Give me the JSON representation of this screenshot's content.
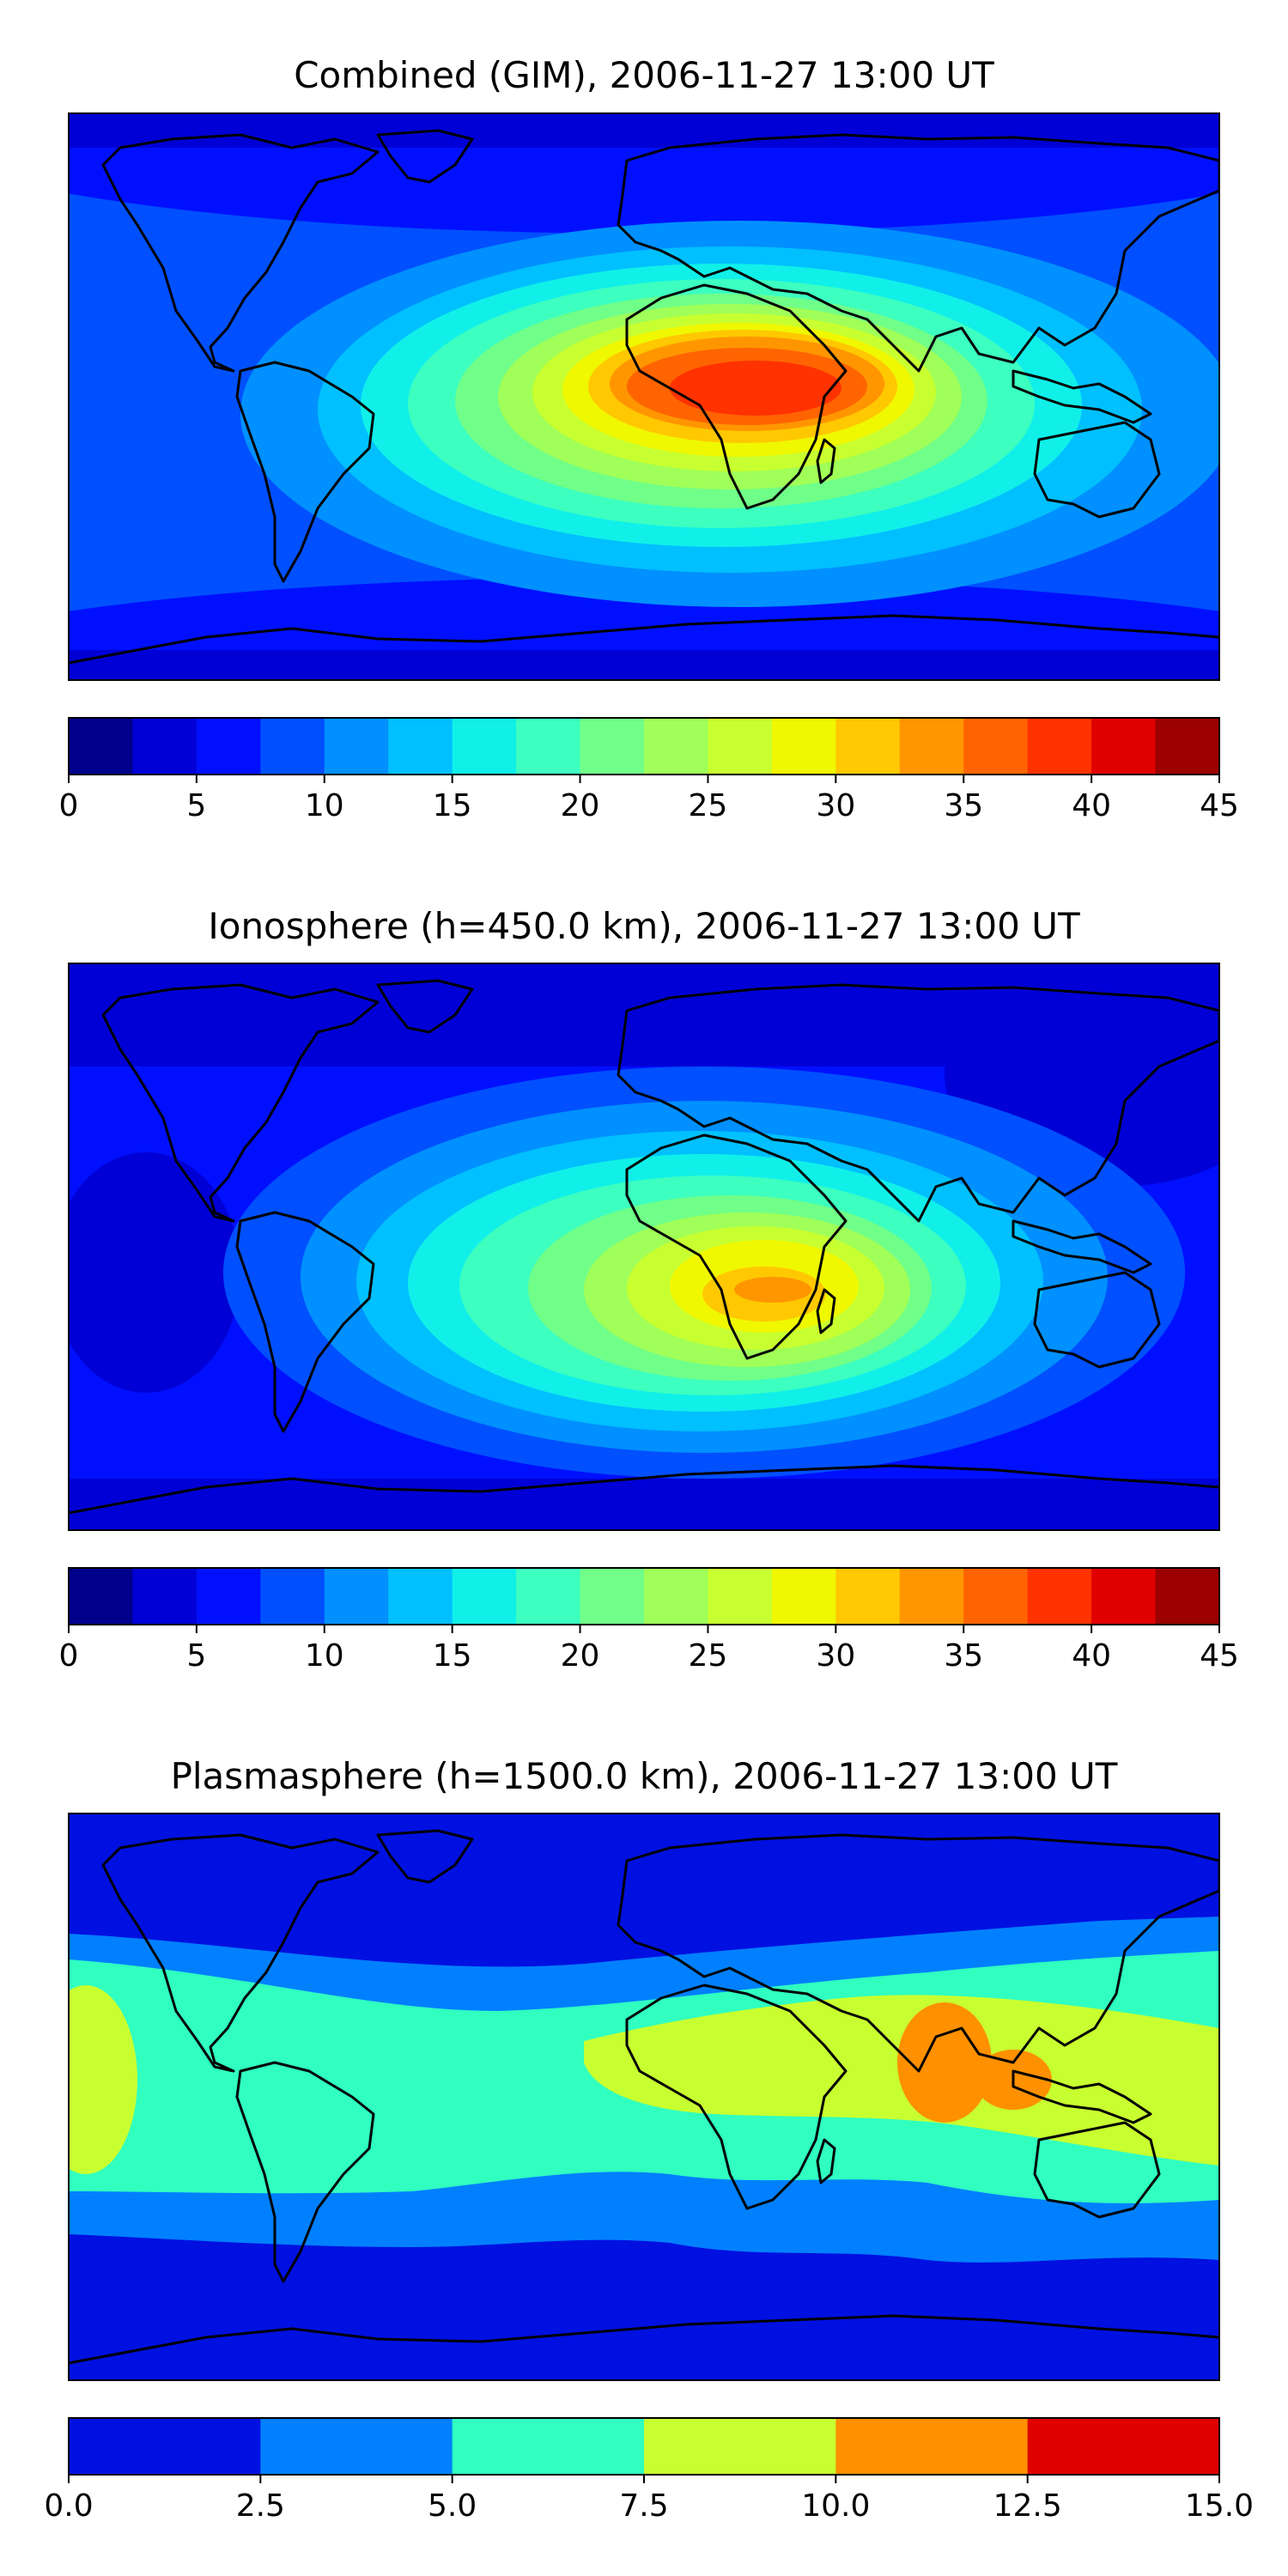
{
  "panels": [
    {
      "id": "combined",
      "title": "Combined (GIM), 2006-11-27 13:00 UT",
      "colorbar": {
        "ticks": [
          "0",
          "5",
          "10",
          "15",
          "20",
          "25",
          "30",
          "35",
          "40",
          "45"
        ],
        "bins": [
          0,
          2.5,
          5,
          7.5,
          10,
          12.5,
          15,
          17.5,
          20,
          22.5,
          25,
          27.5,
          30,
          32.5,
          35,
          37.5,
          40,
          42.5,
          45
        ],
        "colors": [
          "#00008c",
          "#0000d6",
          "#0010ff",
          "#0050ff",
          "#0090ff",
          "#00c0ff",
          "#10f0e8",
          "#3cffc0",
          "#70ff88",
          "#a0ff58",
          "#c8ff30",
          "#f0f800",
          "#ffc800",
          "#ff9600",
          "#ff6400",
          "#ff3200",
          "#e00000",
          "#9c0000"
        ]
      }
    },
    {
      "id": "ionosphere",
      "title": "Ionosphere  (h=450.0 km), 2006-11-27 13:00 UT",
      "colorbar": {
        "ticks": [
          "0",
          "5",
          "10",
          "15",
          "20",
          "25",
          "30",
          "35",
          "40",
          "45"
        ],
        "bins": [
          0,
          2.5,
          5,
          7.5,
          10,
          12.5,
          15,
          17.5,
          20,
          22.5,
          25,
          27.5,
          30,
          32.5,
          35,
          37.5,
          40,
          42.5,
          45
        ],
        "colors": [
          "#00008c",
          "#0000d6",
          "#0010ff",
          "#0050ff",
          "#0090ff",
          "#00c0ff",
          "#10f0e8",
          "#3cffc0",
          "#70ff88",
          "#a0ff58",
          "#c8ff30",
          "#f0f800",
          "#ffc800",
          "#ff9600",
          "#ff6400",
          "#ff3200",
          "#e00000",
          "#9c0000"
        ]
      }
    },
    {
      "id": "plasmasphere",
      "title": "Plasmasphere (h=1500.0 km), 2006-11-27 13:00 UT",
      "colorbar": {
        "ticks": [
          "0.0",
          "2.5",
          "5.0",
          "7.5",
          "10.0",
          "12.5",
          "15.0"
        ],
        "bins": [
          0,
          2.5,
          5,
          7.5,
          10,
          12.5,
          15
        ],
        "colors": [
          "#0010e0",
          "#0080ff",
          "#30ffc0",
          "#c8ff30",
          "#ff9000",
          "#e00000"
        ]
      }
    }
  ]
}
